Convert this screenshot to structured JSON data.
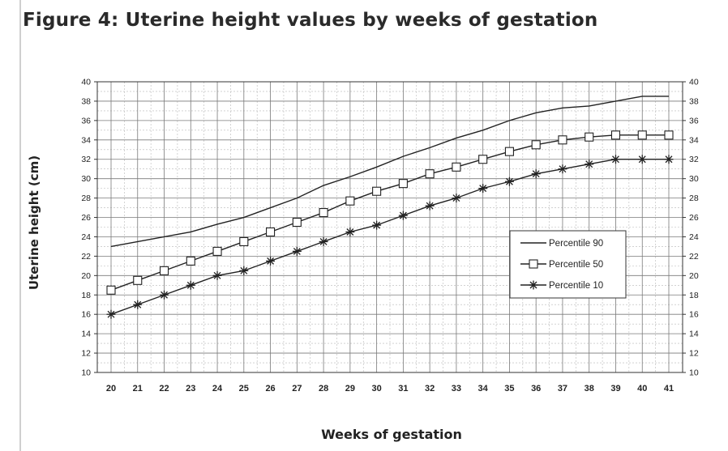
{
  "figure": {
    "title": "Figure 4:  Uterine height values by weeks of gestation"
  },
  "chart_data": {
    "type": "line",
    "title": "Figure 4:  Uterine height values by weeks of gestation",
    "xlabel": "Weeks of gestation",
    "ylabel": "Uterine height (cm)",
    "x": [
      20,
      21,
      22,
      23,
      24,
      25,
      26,
      27,
      28,
      29,
      30,
      31,
      32,
      33,
      34,
      35,
      36,
      37,
      38,
      39,
      40,
      41
    ],
    "xlim": [
      20,
      41
    ],
    "ylim": [
      10,
      40
    ],
    "yticks": [
      10,
      12,
      14,
      16,
      18,
      20,
      22,
      24,
      26,
      28,
      30,
      32,
      34,
      36,
      38,
      40
    ],
    "grid": true,
    "legend_position": "right-middle",
    "series": [
      {
        "name": "Percentile 90",
        "marker": "none",
        "values": [
          23,
          23.5,
          24,
          24.5,
          25.3,
          26,
          27,
          28,
          29.3,
          30.2,
          31.2,
          32.3,
          33.2,
          34.2,
          35,
          36,
          36.8,
          37.3,
          37.5,
          38,
          38.5,
          38.5
        ]
      },
      {
        "name": "Percentile 50",
        "marker": "square",
        "values": [
          18.5,
          19.5,
          20.5,
          21.5,
          22.5,
          23.5,
          24.5,
          25.5,
          26.5,
          27.7,
          28.7,
          29.5,
          30.5,
          31.2,
          32,
          32.8,
          33.5,
          34,
          34.3,
          34.5,
          34.5,
          34.5
        ]
      },
      {
        "name": "Percentile 10",
        "marker": "star",
        "values": [
          16,
          17,
          18,
          19,
          20,
          20.5,
          21.5,
          22.5,
          23.5,
          24.5,
          25.2,
          26.2,
          27.2,
          28,
          29,
          29.7,
          30.5,
          31,
          31.5,
          32,
          32,
          32
        ]
      }
    ]
  }
}
